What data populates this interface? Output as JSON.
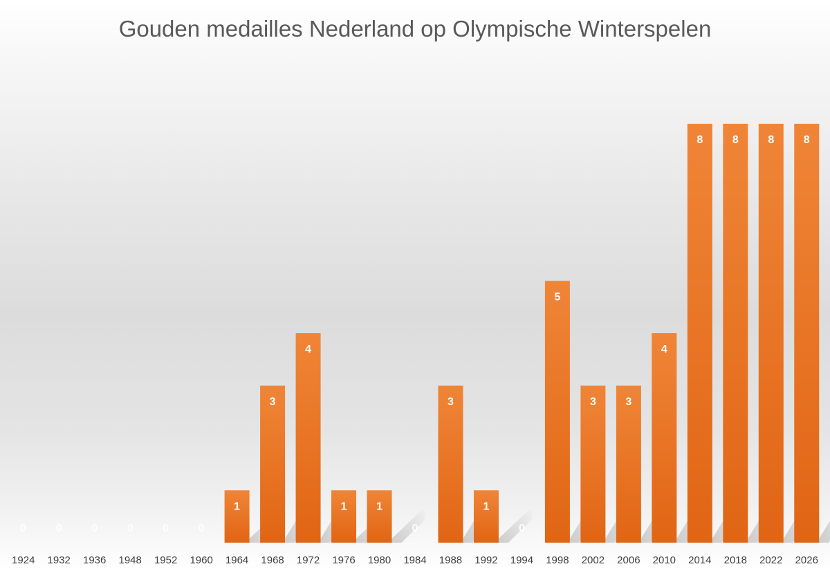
{
  "chart_data": {
    "type": "bar",
    "title": "Gouden medailles Nederland op Olympische Winterspelen",
    "xlabel": "",
    "ylabel": "",
    "categories": [
      "1924",
      "1932",
      "1936",
      "1948",
      "1952",
      "1960",
      "1964",
      "1968",
      "1972",
      "1976",
      "1980",
      "1984",
      "1988",
      "1992",
      "1994",
      "1998",
      "2002",
      "2006",
      "2010",
      "2014",
      "2018",
      "2022",
      "2026"
    ],
    "values": [
      0,
      0,
      0,
      0,
      0,
      0,
      1,
      3,
      4,
      1,
      1,
      0,
      3,
      1,
      0,
      5,
      3,
      3,
      4,
      8,
      8,
      8,
      8
    ],
    "ylim": [
      0,
      8
    ],
    "grid": false,
    "legend": "none",
    "data_labels": true,
    "colors": {
      "bar_top": "#F08537",
      "bar_bottom": "#E06514",
      "label": "#FFFFFF",
      "title": "#595959",
      "tick": "#404040"
    }
  }
}
